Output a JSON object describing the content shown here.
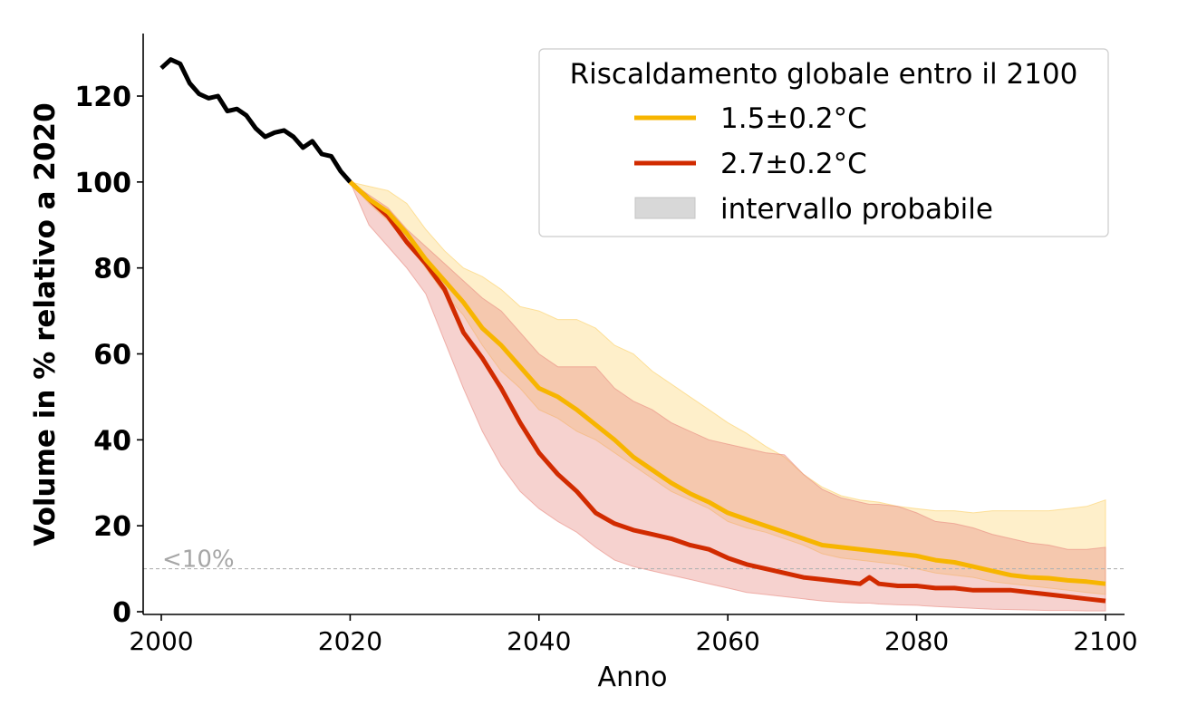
{
  "chart_data": {
    "type": "line",
    "title": "",
    "xlabel": "Anno",
    "ylabel": "Volume in % relativo a 2020",
    "xlim": [
      2000,
      2100
    ],
    "ylim": [
      0,
      135
    ],
    "xticks": [
      2000,
      2020,
      2040,
      2060,
      2080,
      2100
    ],
    "yticks": [
      0,
      20,
      40,
      60,
      80,
      100,
      120
    ],
    "grid": false,
    "legend": {
      "title": "Riscaldamento globale entro il 2100",
      "placement": "top-right",
      "entries": [
        "1.5±0.2°C",
        "2.7±0.2°C",
        "intervallo probabile"
      ]
    },
    "threshold": {
      "y": 10,
      "label": "<10%",
      "color": "#b3b3b3"
    },
    "observed": {
      "name": "",
      "color": "#000000",
      "x": [
        2000,
        2001,
        2002,
        2003,
        2004,
        2005,
        2006,
        2007,
        2008,
        2009,
        2010,
        2011,
        2012,
        2013,
        2014,
        2015,
        2016,
        2017,
        2018,
        2019,
        2020
      ],
      "y": [
        126.5,
        128.5,
        127.5,
        123,
        120.5,
        119.5,
        120,
        116.5,
        117,
        115.5,
        112.5,
        110.5,
        111.5,
        112,
        110.5,
        108,
        109.5,
        106.5,
        106,
        102.5,
        100
      ]
    },
    "series": [
      {
        "name": "1.5±0.2°C",
        "color": "#f7b500",
        "band_color": "#fcd166",
        "x": [
          2020,
          2022,
          2024,
          2026,
          2028,
          2030,
          2032,
          2034,
          2036,
          2038,
          2040,
          2042,
          2044,
          2046,
          2048,
          2050,
          2052,
          2054,
          2056,
          2058,
          2060,
          2062,
          2064,
          2066,
          2068,
          2070,
          2072,
          2074,
          2076,
          2078,
          2080,
          2082,
          2084,
          2086,
          2088,
          2090,
          2092,
          2094,
          2096,
          2098,
          2100
        ],
        "y": [
          100,
          96,
          93,
          88,
          82,
          77,
          72,
          66,
          62,
          57,
          52,
          50,
          47,
          43.5,
          40,
          36,
          33,
          30,
          27.5,
          25.5,
          23,
          21.5,
          20,
          18.5,
          17,
          15.5,
          15,
          14.5,
          14,
          13.5,
          13,
          12,
          11.5,
          10.5,
          9.5,
          8.5,
          8,
          7.8,
          7.3,
          7,
          6.5
        ],
        "lower": [
          100,
          95,
          91,
          86,
          80,
          74,
          69,
          62,
          56,
          52,
          47,
          45,
          42,
          40,
          37,
          34,
          31,
          28,
          26,
          24,
          21,
          19.5,
          18.5,
          17,
          15.5,
          13.5,
          12.5,
          12,
          11.5,
          11,
          10,
          9,
          8.5,
          8,
          7,
          6.5,
          6,
          5.5,
          5,
          4.5,
          4
        ],
        "upper": [
          100,
          99,
          98,
          95,
          89,
          84,
          80,
          78,
          75,
          71,
          70,
          68,
          68,
          66,
          62,
          60,
          56,
          53,
          50,
          47,
          44,
          41.5,
          38.5,
          36,
          32,
          29,
          27,
          26,
          25.5,
          24.5,
          24,
          23.5,
          23.5,
          23,
          23.5,
          23.5,
          23.5,
          23.5,
          24,
          24.5,
          26
        ]
      },
      {
        "name": "2.7±0.2°C",
        "color": "#d12b00",
        "band_color": "#e88a80",
        "x": [
          2020,
          2022,
          2024,
          2026,
          2028,
          2030,
          2032,
          2034,
          2036,
          2038,
          2040,
          2042,
          2044,
          2046,
          2048,
          2050,
          2052,
          2054,
          2056,
          2058,
          2060,
          2062,
          2064,
          2066,
          2068,
          2070,
          2072,
          2074,
          2075,
          2076,
          2078,
          2080,
          2082,
          2084,
          2086,
          2088,
          2090,
          2092,
          2094,
          2096,
          2098,
          2100
        ],
        "y": [
          100,
          96,
          92,
          86,
          81,
          75,
          65,
          59,
          52,
          44,
          37,
          32,
          28,
          23,
          20.5,
          19,
          18,
          17,
          15.5,
          14.5,
          12.5,
          11,
          10,
          9,
          8,
          7.5,
          7,
          6.5,
          8,
          6.5,
          6,
          6,
          5.5,
          5.5,
          5,
          5,
          5,
          4.5,
          4,
          3.5,
          3,
          2.5
        ],
        "lower": [
          100,
          90,
          85,
          80,
          74,
          63,
          52,
          42,
          34,
          28,
          24,
          21,
          18.5,
          15,
          12,
          10.5,
          9.5,
          8.5,
          7.5,
          6.5,
          5.5,
          4.5,
          4,
          3.5,
          3,
          2.5,
          2.2,
          2,
          2,
          1.8,
          1.6,
          1.5,
          1.2,
          1,
          0.8,
          0.6,
          0.5,
          0.4,
          0.3,
          0.3,
          0.2,
          0.2
        ],
        "upper": [
          100,
          97,
          94,
          89,
          85,
          81,
          77,
          73,
          70,
          65,
          60,
          57,
          57,
          57,
          52,
          49,
          47,
          44,
          42,
          40,
          39,
          38,
          37,
          36.5,
          32,
          28.5,
          26.5,
          25.5,
          25,
          25,
          24.5,
          23,
          21,
          20.5,
          19.5,
          18,
          17,
          16,
          15.5,
          14.5,
          14.5,
          15
        ]
      }
    ]
  }
}
